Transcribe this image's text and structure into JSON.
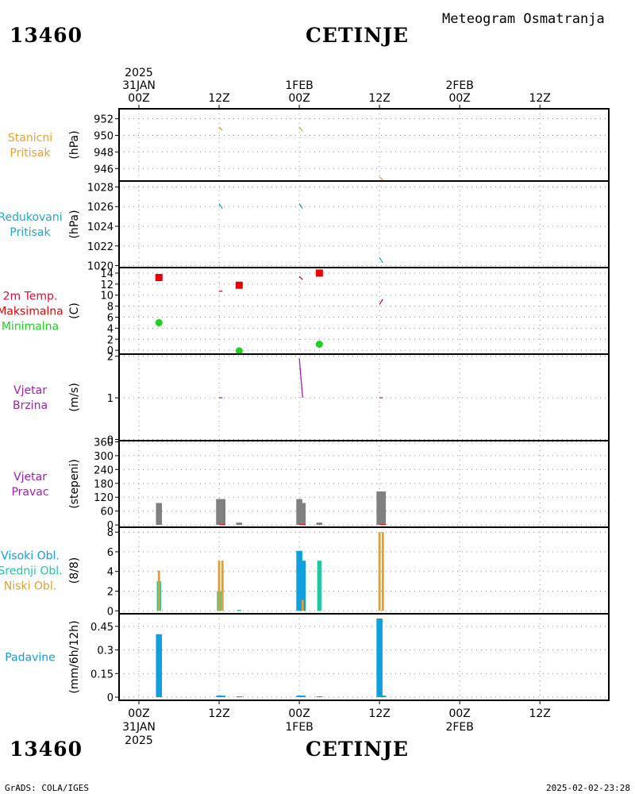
{
  "header": {
    "station_id": "13460",
    "station_name": "CETINJE",
    "subtitle": "Meteogram Osmatranja",
    "footer_left": "GrADS: COLA/IGES",
    "footer_right": "2025-02-02-23:28"
  },
  "time_axis": {
    "top_labels": [
      {
        "lines": [
          "2025",
          "31JAN",
          "00Z"
        ]
      },
      {
        "lines": [
          "12Z"
        ]
      },
      {
        "lines": [
          "1FEB",
          "00Z"
        ]
      },
      {
        "lines": [
          "12Z"
        ]
      },
      {
        "lines": [
          "2FEB",
          "00Z"
        ]
      },
      {
        "lines": [
          "12Z"
        ]
      }
    ],
    "bottom_labels": [
      {
        "lines": [
          "00Z",
          "31JAN",
          "2025"
        ]
      },
      {
        "lines": [
          "12Z"
        ]
      },
      {
        "lines": [
          "00Z",
          "1FEB"
        ]
      },
      {
        "lines": [
          "12Z"
        ]
      },
      {
        "lines": [
          "00Z",
          "2FEB"
        ]
      },
      {
        "lines": [
          "12Z"
        ]
      }
    ]
  },
  "colors": {
    "orange": "#e8a030",
    "cyan": "#20a8c8",
    "red": "#e80000",
    "crimson": "#d0103c",
    "green": "#20d020",
    "purple": "#a020b0",
    "gray": "#808080",
    "blue": "#10a0e0",
    "teal": "#20c8a0",
    "gold": "#e0a030"
  },
  "chart_data": [
    {
      "type": "line",
      "label_lines": [
        "Stanicni",
        "Pritisak"
      ],
      "label_colors": [
        "orange",
        "orange"
      ],
      "unit": "(hPa)",
      "ylim": [
        944.5,
        953.2
      ],
      "yticks": [
        946,
        948,
        950,
        952
      ],
      "grid": true,
      "series": [
        {
          "color": "orange",
          "segments": [
            [
              [
                12,
                951.0
              ],
              [
                12.5,
                950.6
              ]
            ],
            [
              [
                24,
                951.0
              ],
              [
                24.5,
                950.5
              ]
            ],
            [
              [
                36,
                945.0
              ],
              [
                36.5,
                944.6
              ]
            ]
          ]
        }
      ]
    },
    {
      "type": "line",
      "label_lines": [
        "Redukovani",
        "Pritisak"
      ],
      "label_colors": [
        "cyan",
        "cyan"
      ],
      "unit": "(hPa)",
      "ylim": [
        1019.8,
        1028.6
      ],
      "yticks": [
        1020,
        1022,
        1024,
        1026,
        1028
      ],
      "grid": true,
      "series": [
        {
          "color": "cyan",
          "segments": [
            [
              [
                12,
                1026.3
              ],
              [
                12.5,
                1025.8
              ]
            ],
            [
              [
                24,
                1026.3
              ],
              [
                24.5,
                1025.8
              ]
            ],
            [
              [
                36,
                1020.8
              ],
              [
                36.5,
                1020.3
              ]
            ]
          ]
        }
      ]
    },
    {
      "type": "scatter",
      "label_lines": [
        "2m Temp.",
        "Maksimalna",
        "Minimalna"
      ],
      "label_colors": [
        "crimson",
        "red",
        "green"
      ],
      "unit": "(C)",
      "ylim": [
        -0.7,
        15
      ],
      "yticks": [
        0,
        2,
        4,
        6,
        8,
        10,
        12,
        14
      ],
      "grid": true,
      "series": [
        {
          "name": "2m Temp.",
          "color": "crimson",
          "segments": [
            [
              [
                12,
                10.7
              ],
              [
                12.5,
                10.7
              ]
            ],
            [
              [
                24,
                13.4
              ],
              [
                24.5,
                12.8
              ]
            ],
            [
              [
                36,
                8.3
              ],
              [
                36.5,
                9.3
              ]
            ]
          ]
        },
        {
          "name": "Maksimalna",
          "color": "red",
          "marker": "square",
          "points": [
            [
              3,
              13.2
            ],
            [
              15,
              11.8
            ],
            [
              27,
              14.0
            ]
          ]
        },
        {
          "name": "Minimalna",
          "color": "green",
          "marker": "circle",
          "points": [
            [
              3,
              5.0
            ],
            [
              15,
              -0.1
            ],
            [
              27,
              1.1
            ]
          ]
        }
      ]
    },
    {
      "type": "line",
      "label_lines": [
        "Vjetar",
        "Brzina"
      ],
      "label_colors": [
        "purple",
        "purple"
      ],
      "unit": "(m/s)",
      "ylim": [
        -0.03,
        2.05
      ],
      "yticks": [
        0,
        1,
        2
      ],
      "grid": true,
      "series": [
        {
          "color": "purple",
          "segments": [
            [
              [
                12,
                1.0
              ],
              [
                12.5,
                1.0
              ]
            ],
            [
              [
                24,
                1.95
              ],
              [
                24.5,
                1.0
              ]
            ],
            [
              [
                36,
                1.0
              ],
              [
                36.5,
                1.0
              ]
            ]
          ]
        }
      ]
    },
    {
      "type": "bar",
      "label_lines": [
        "Vjetar",
        "Pravac"
      ],
      "label_colors": [
        "purple",
        "purple"
      ],
      "unit": "(stepeni)",
      "ylim": [
        -10,
        365
      ],
      "yticks": [
        0,
        60,
        120,
        180,
        240,
        300,
        360
      ],
      "grid": true,
      "series": [
        {
          "color": "gray",
          "width": 0.45,
          "bars": [
            [
              3,
              95
            ],
            [
              12,
              112
            ],
            [
              12.5,
              112
            ],
            [
              15,
              10
            ],
            [
              24,
              112
            ],
            [
              24.5,
              95
            ],
            [
              27,
              10
            ],
            [
              36,
              145
            ],
            [
              36.5,
              145
            ]
          ]
        },
        {
          "color": "red",
          "width": 0.45,
          "bars": [
            [
              12.5,
              3
            ],
            [
              24.5,
              3
            ],
            [
              36.5,
              3
            ]
          ]
        }
      ]
    },
    {
      "type": "bar",
      "label_lines": [
        "Visoki Obl.",
        "Srednji Obl.",
        "Niski Obl."
      ],
      "label_colors": [
        "blue",
        "teal",
        "gold"
      ],
      "unit": "(8/8)",
      "ylim": [
        -0.3,
        8.5
      ],
      "yticks": [
        0,
        2,
        4,
        6,
        8
      ],
      "grid": true,
      "series": [
        {
          "name": "Visoki Obl.",
          "color": "blue",
          "width": 0.45,
          "bars": [
            [
              24,
              6.1
            ],
            [
              24.5,
              5.1
            ]
          ]
        },
        {
          "name": "Srednji Obl.",
          "color": "teal",
          "width": 0.32,
          "bars": [
            [
              3,
              3.0
            ],
            [
              12,
              2.0
            ],
            [
              15,
              0.1
            ],
            [
              27,
              5.1
            ]
          ]
        },
        {
          "name": "Niski Obl.",
          "color": "gold",
          "width": 0.17,
          "bars": [
            [
              3,
              4.1
            ],
            [
              12,
              5.1
            ],
            [
              12.5,
              5.1
            ],
            [
              24.5,
              1.1
            ],
            [
              36,
              8.0
            ],
            [
              36.5,
              8.0
            ]
          ]
        }
      ]
    },
    {
      "type": "bar",
      "label_lines": [
        "Padavine"
      ],
      "label_colors": [
        "blue"
      ],
      "unit": "(mm/6h/12h)",
      "ylim": [
        -0.02,
        0.53
      ],
      "yticks": [
        0,
        0.15,
        0.3,
        0.45
      ],
      "grid": true,
      "series": [
        {
          "color": "blue",
          "width": 0.45,
          "bars": [
            [
              3,
              0.4
            ],
            [
              12,
              0.01
            ],
            [
              12.5,
              0.01
            ],
            [
              15,
              0.005
            ],
            [
              24,
              0.01
            ],
            [
              24.5,
              0.01
            ],
            [
              27,
              0.005
            ],
            [
              36,
              0.5
            ],
            [
              36.5,
              0.01
            ]
          ]
        }
      ]
    }
  ]
}
